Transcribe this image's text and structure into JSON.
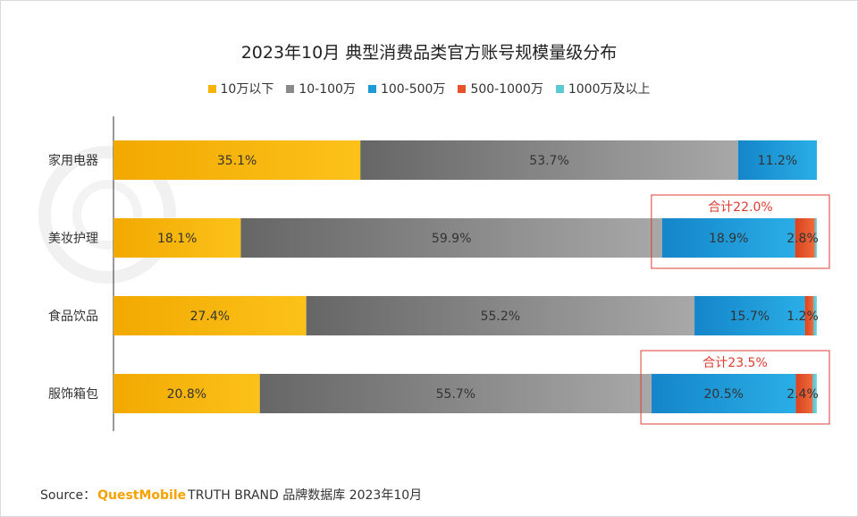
{
  "chart_data": {
    "type": "bar",
    "orientation": "horizontal",
    "stacked": true,
    "title": "2023年10月 典型消费品类官方账号规模量级分布",
    "categories": [
      "家用电器",
      "美妆护理",
      "食品饮品",
      "服饰箱包"
    ],
    "series": [
      {
        "name": "10万以下",
        "color": "#f6b30c",
        "values": [
          35.1,
          18.1,
          27.4,
          20.8
        ],
        "labels": [
          "35.1%",
          "18.1%",
          "27.4%",
          "20.8%"
        ]
      },
      {
        "name": "10-100万",
        "color": "#8a8a8a",
        "values": [
          53.7,
          59.9,
          55.2,
          55.7
        ],
        "labels": [
          "53.7%",
          "59.9%",
          "55.2%",
          "55.7%"
        ]
      },
      {
        "name": "100-500万",
        "color": "#1e9ad6",
        "values": [
          11.2,
          18.9,
          15.7,
          20.5
        ],
        "labels": [
          "11.2%",
          "18.9%",
          "15.7%",
          "20.5%"
        ]
      },
      {
        "name": "500-1000万",
        "color": "#e5532b",
        "values": [
          0,
          2.8,
          1.2,
          2.4
        ],
        "labels": [
          "",
          "2.8%",
          "1.2%",
          "2.4%"
        ]
      },
      {
        "name": "1000万及以上",
        "color": "#5fc9d3",
        "values": [
          0,
          0.3,
          0.5,
          0.6
        ],
        "labels": [
          "",
          "",
          "",
          ""
        ]
      }
    ],
    "xlim": [
      0,
      100
    ],
    "annotations": [
      {
        "category": "美妆护理",
        "text": "合计22.0%",
        "color": "#e03c31"
      },
      {
        "category": "服饰箱包",
        "text": "合计23.5%",
        "color": "#e03c31"
      }
    ],
    "legend_position": "top-center",
    "grid": false
  },
  "source": {
    "prefix": "Source：",
    "brand": "QuestMobile",
    "suffix": "TRUTH BRAND 品牌数据库 2023年10月"
  }
}
